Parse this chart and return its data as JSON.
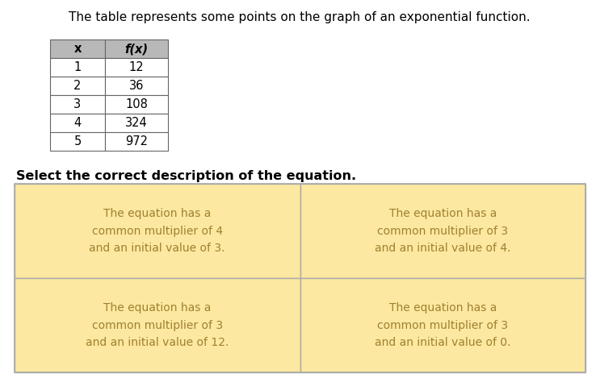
{
  "title": "The table represents some points on the graph of an exponential function.",
  "title_fontsize": 11,
  "title_color": "#000000",
  "table_header": [
    "x",
    "f(x)"
  ],
  "table_data": [
    [
      "1",
      "12"
    ],
    [
      "2",
      "36"
    ],
    [
      "3",
      "108"
    ],
    [
      "4",
      "324"
    ],
    [
      "5",
      "972"
    ]
  ],
  "table_header_bg": "#b8b8b8",
  "table_cell_bg": "#ffffff",
  "table_border_color": "#666666",
  "subtitle": "Select the correct description of the equation.",
  "subtitle_fontsize": 11.5,
  "subtitle_bold": true,
  "subtitle_color": "#000000",
  "options": [
    "The equation has a\ncommon multiplier of 4\nand an initial value of 3.",
    "The equation has a\ncommon multiplier of 3\nand an initial value of 4.",
    "The equation has a\ncommon multiplier of 3\nand an initial value of 12.",
    "The equation has a\ncommon multiplier of 3\nand an initial value of 0."
  ],
  "option_bg": "#fce8a0",
  "option_border_color": "#aaaaaa",
  "option_text_color": "#a08030",
  "option_fontsize": 10,
  "bg_color": "#ffffff",
  "fig_width": 7.43,
  "fig_height": 4.69,
  "dpi": 100
}
